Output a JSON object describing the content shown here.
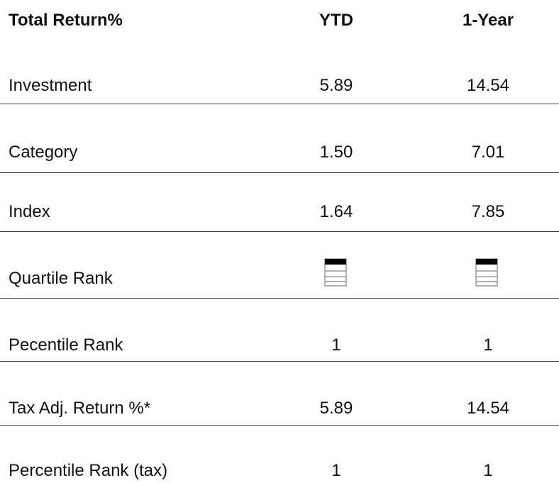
{
  "table": {
    "header": [
      "Total Return%",
      "YTD",
      "1-Year"
    ],
    "rows": [
      [
        "Investment",
        "5.89",
        "14.54"
      ],
      [
        "Category",
        "1.50",
        "7.01"
      ],
      [
        "Index",
        "1.64",
        "7.85"
      ],
      [
        "Quartile Rank"
      ],
      [
        "Pecentile Rank",
        "1",
        "1"
      ],
      [
        "Tax Adj. Return %*",
        "5.89",
        "14.54"
      ],
      [
        "Percentile Rank (tax)",
        "1",
        "1"
      ]
    ]
  }
}
